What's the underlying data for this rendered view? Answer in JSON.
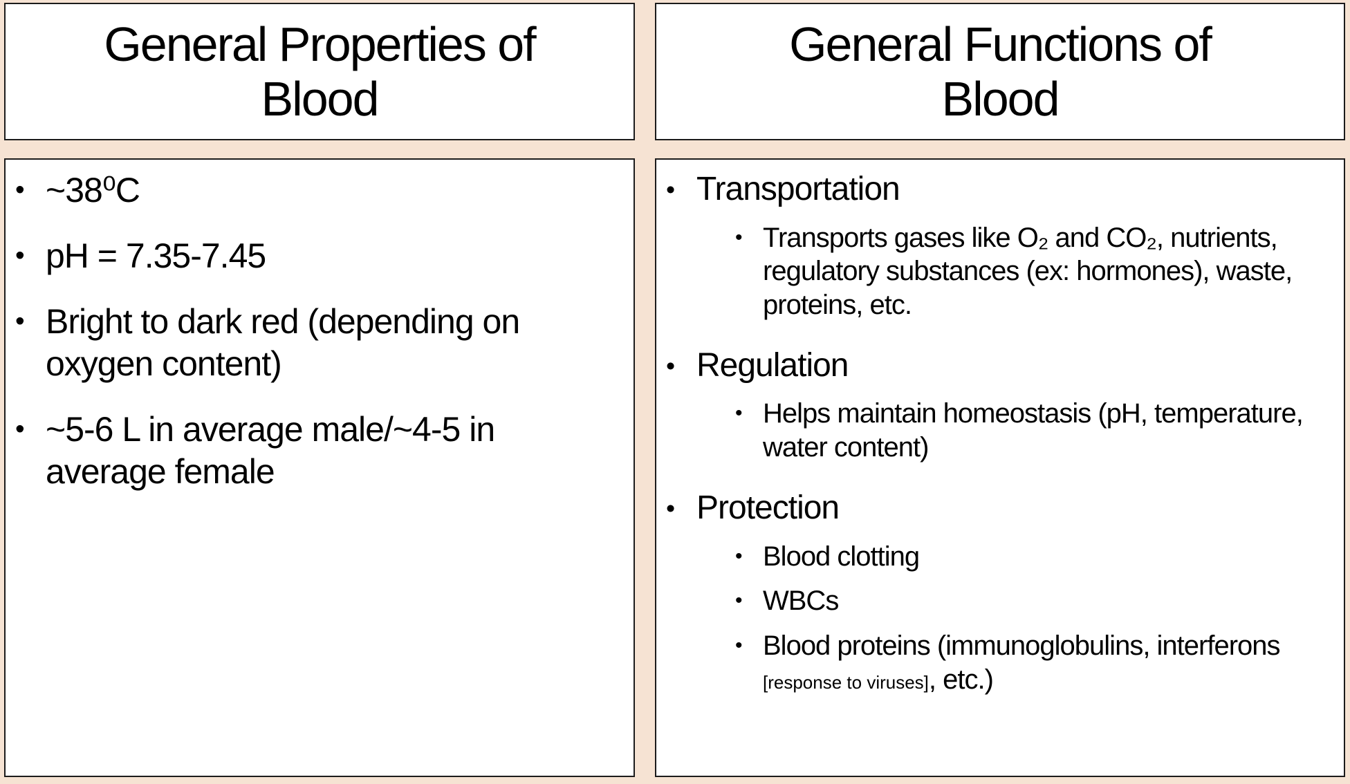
{
  "colors": {
    "page_background": "#f6e3d3",
    "panel_background": "#ffffff",
    "panel_border": "#1b1b1b",
    "text": "#000000"
  },
  "left_panel": {
    "title": "General Properties of Blood",
    "bullets": [
      "~38⁰C",
      "pH = 7.35-7.45",
      "Bright to dark red (depending on oxygen content)",
      "~5-6 L in average male/~4-5 in average female"
    ]
  },
  "right_panel": {
    "title": "General Functions of Blood",
    "sections": [
      {
        "heading": "Transportation",
        "subs": [
          "Transports gases like O₂ and CO₂, nutrients, regulatory substances (ex: hormones), waste, proteins, etc."
        ]
      },
      {
        "heading": "Regulation",
        "subs": [
          "Helps maintain homeostasis (pH, temperature, water content)"
        ]
      },
      {
        "heading": "Protection",
        "subs": [
          "Blood clotting",
          "WBCs"
        ],
        "rich_sub": {
          "pre": "Blood proteins (immunoglobulins, interferons ",
          "small": "[response to viruses]",
          "post": ", etc.)"
        }
      }
    ]
  }
}
